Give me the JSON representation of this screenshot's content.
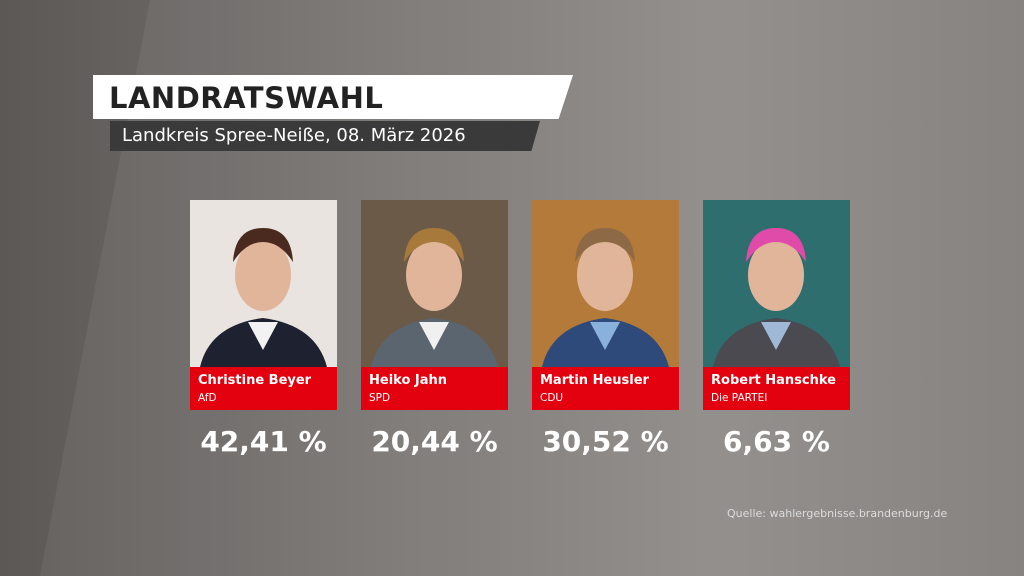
{
  "header": {
    "title": "LANDRATSWAHL",
    "subtitle": "Landkreis Spree-Neiße, 08. März 2026"
  },
  "candidates": [
    {
      "name": "Christine Beyer",
      "party": "AfD",
      "result": "42,41 %"
    },
    {
      "name": "Heiko Jahn",
      "party": "SPD",
      "result": "20,44 %"
    },
    {
      "name": "Martin Heusler",
      "party": "CDU",
      "result": "30,52 %"
    },
    {
      "name": "Robert Hanschke",
      "party": "Die PARTEI",
      "result": "6,63 %"
    }
  ],
  "source": "Quelle: wahlergebnisse.brandenburg.de"
}
